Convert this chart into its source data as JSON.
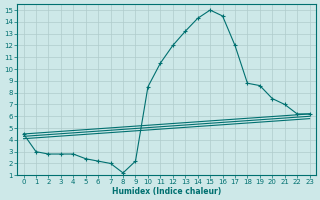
{
  "xlabel": "Humidex (Indice chaleur)",
  "xlim": [
    -0.5,
    23.5
  ],
  "ylim": [
    1,
    15.5
  ],
  "xticks": [
    0,
    1,
    2,
    3,
    4,
    5,
    6,
    7,
    8,
    9,
    10,
    11,
    12,
    13,
    14,
    15,
    16,
    17,
    18,
    19,
    20,
    21,
    22,
    23
  ],
  "yticks": [
    1,
    2,
    3,
    4,
    5,
    6,
    7,
    8,
    9,
    10,
    11,
    12,
    13,
    14,
    15
  ],
  "background_color": "#cde8e8",
  "grid_color": "#b0cccc",
  "line_color": "#007070",
  "lines": [
    {
      "comment": "main curve - dips then peaks",
      "x": [
        0,
        1,
        2,
        3,
        4,
        5,
        6,
        7,
        8,
        9,
        10,
        11,
        12,
        13,
        14,
        15,
        16,
        17,
        18,
        19,
        20,
        21,
        22,
        23
      ],
      "y": [
        4.5,
        3.0,
        2.8,
        2.8,
        2.8,
        2.4,
        2.2,
        2.0,
        1.2,
        2.2,
        8.5,
        10.5,
        12.0,
        13.2,
        14.3,
        15.0,
        14.5,
        12.0,
        8.8,
        8.6,
        7.5,
        7.0,
        6.2,
        6.2
      ]
    },
    {
      "comment": "upper flat line - gradually rising",
      "x": [
        0,
        23
      ],
      "y": [
        4.5,
        6.2
      ]
    },
    {
      "comment": "middle flat line",
      "x": [
        0,
        23
      ],
      "y": [
        4.3,
        6.0
      ]
    },
    {
      "comment": "lower flat line",
      "x": [
        0,
        23
      ],
      "y": [
        4.1,
        5.8
      ]
    }
  ]
}
